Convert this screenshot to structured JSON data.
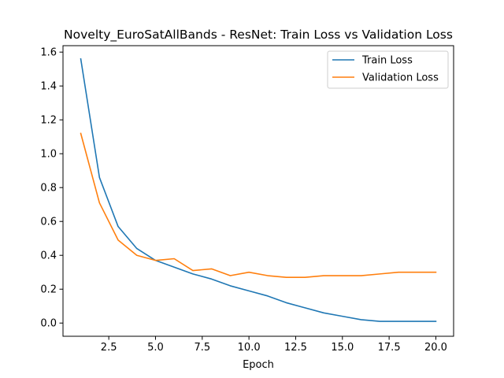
{
  "chart_data": {
    "type": "line",
    "title": "Novelty_EuroSatAllBands - ResNet: Train Loss vs Validation Loss",
    "xlabel": "Epoch",
    "ylabel": "",
    "xlim": [
      0.05,
      20.95
    ],
    "ylim": [
      -0.078,
      1.638
    ],
    "xticks": [
      2.5,
      5.0,
      7.5,
      10.0,
      12.5,
      15.0,
      17.5,
      20.0
    ],
    "xtick_labels": [
      "2.5",
      "5.0",
      "7.5",
      "10.0",
      "12.5",
      "15.0",
      "17.5",
      "20.0"
    ],
    "yticks": [
      0.0,
      0.2,
      0.4,
      0.6,
      0.8,
      1.0,
      1.2,
      1.4,
      1.6
    ],
    "ytick_labels": [
      "0.0",
      "0.2",
      "0.4",
      "0.6",
      "0.8",
      "1.0",
      "1.2",
      "1.4",
      "1.6"
    ],
    "grid": false,
    "legend_position": "top-right",
    "x": [
      1,
      2,
      3,
      4,
      5,
      6,
      7,
      8,
      9,
      10,
      11,
      12,
      13,
      14,
      15,
      16,
      17,
      18,
      19,
      20
    ],
    "series": [
      {
        "name": "Train Loss",
        "color": "#1f77b4",
        "values": [
          1.56,
          0.86,
          0.57,
          0.44,
          0.37,
          0.33,
          0.29,
          0.26,
          0.22,
          0.19,
          0.16,
          0.12,
          0.09,
          0.06,
          0.04,
          0.02,
          0.01,
          0.01,
          0.01,
          0.01
        ]
      },
      {
        "name": "Validation Loss",
        "color": "#ff7f0e",
        "values": [
          1.12,
          0.71,
          0.49,
          0.4,
          0.37,
          0.38,
          0.31,
          0.32,
          0.28,
          0.3,
          0.28,
          0.27,
          0.27,
          0.28,
          0.28,
          0.28,
          0.29,
          0.3,
          0.3,
          0.3
        ]
      }
    ]
  }
}
